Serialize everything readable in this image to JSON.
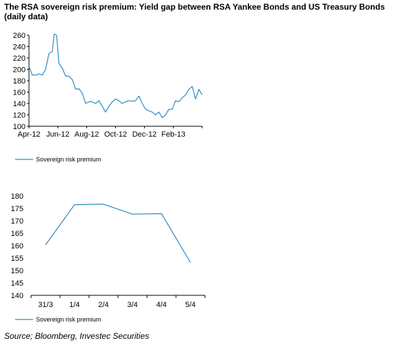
{
  "title": "The RSA sovereign risk premium: Yield gap between RSA Yankee Bonds and US Treasury Bonds (daily data)",
  "source": "Source; Bloomberg, Investec Securities",
  "line_color": "#2E8BC0",
  "chart_data": [
    {
      "type": "line",
      "title": "",
      "xlabel": "",
      "ylabel": "",
      "ylim": [
        100,
        260
      ],
      "yticks": [
        100,
        120,
        140,
        160,
        180,
        200,
        220,
        240,
        260
      ],
      "xticks": [
        "Apr-12",
        "Jun-12",
        "Aug-12",
        "Oct-12",
        "Dec-12",
        "Feb-13"
      ],
      "legend_position": "bottom-left",
      "grid": false,
      "series": [
        {
          "name": "Sovereign risk premium",
          "x": [
            "2012-04-02",
            "2012-04-09",
            "2012-04-16",
            "2012-04-23",
            "2012-04-30",
            "2012-05-07",
            "2012-05-14",
            "2012-05-21",
            "2012-05-25",
            "2012-05-30",
            "2012-06-04",
            "2012-06-11",
            "2012-06-18",
            "2012-06-25",
            "2012-07-02",
            "2012-07-09",
            "2012-07-16",
            "2012-07-23",
            "2012-07-30",
            "2012-08-06",
            "2012-08-13",
            "2012-08-20",
            "2012-08-27",
            "2012-09-03",
            "2012-09-10",
            "2012-09-17",
            "2012-09-24",
            "2012-10-01",
            "2012-10-08",
            "2012-10-15",
            "2012-10-22",
            "2012-10-29",
            "2012-11-05",
            "2012-11-12",
            "2012-11-19",
            "2012-11-26",
            "2012-12-03",
            "2012-12-10",
            "2012-12-17",
            "2012-12-24",
            "2012-12-31",
            "2013-01-07",
            "2013-01-14",
            "2013-01-21",
            "2013-01-28",
            "2013-02-04",
            "2013-02-11",
            "2013-02-18",
            "2013-02-25",
            "2013-03-04",
            "2013-03-11",
            "2013-03-18",
            "2013-03-25",
            "2013-04-01"
          ],
          "y": [
            205,
            190,
            190,
            192,
            190,
            200,
            228,
            231,
            262,
            260,
            210,
            202,
            188,
            188,
            182,
            165,
            166,
            158,
            140,
            143,
            143,
            140,
            145,
            135,
            125,
            135,
            143,
            148,
            145,
            140,
            143,
            145,
            144,
            145,
            153,
            140,
            130,
            127,
            125,
            120,
            125,
            115,
            120,
            130,
            130,
            145,
            143,
            150,
            155,
            165,
            170,
            148,
            165,
            155
          ]
        }
      ]
    },
    {
      "type": "line",
      "title": "",
      "xlabel": "",
      "ylabel": "",
      "ylim": [
        140,
        180
      ],
      "yticks": [
        140,
        145,
        150,
        155,
        160,
        165,
        170,
        175,
        180
      ],
      "categories": [
        "31/3",
        "1/4",
        "2/4",
        "3/4",
        "4/4",
        "5/4"
      ],
      "legend_position": "bottom-left",
      "grid": false,
      "series": [
        {
          "name": "Sovereign risk premium",
          "values": [
            160.3,
            176.5,
            176.7,
            172.7,
            172.9,
            153.2
          ]
        }
      ]
    }
  ]
}
